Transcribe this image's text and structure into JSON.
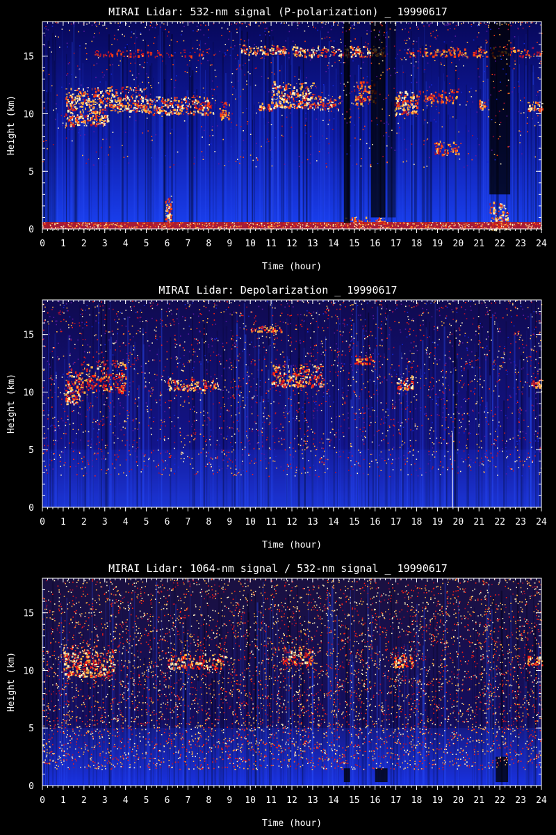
{
  "chart_data": [
    {
      "type": "heatmap",
      "title": "MIRAI Lidar: 532-nm signal (P-polarization) _ 19990617",
      "xlabel": "Time (hour)",
      "ylabel": "Height (km)",
      "xlim": [
        0,
        24
      ],
      "ylim": [
        0,
        18
      ],
      "x_ticks": [
        0,
        1,
        2,
        3,
        4,
        5,
        6,
        7,
        8,
        9,
        10,
        11,
        12,
        13,
        14,
        15,
        16,
        17,
        18,
        19,
        20,
        21,
        22,
        23,
        24
      ],
      "y_ticks": [
        0,
        5,
        10,
        15
      ],
      "colormap": [
        "#000000",
        "#0a0a8c",
        "#1428d8",
        "#5a1aa0",
        "#b01030",
        "#ff4010",
        "#ffb040",
        "#fff0c0"
      ],
      "style": "signal",
      "noise_level": 0.12,
      "features": [
        {
          "kind": "cirrus",
          "x": [
            1.1,
            3.2
          ],
          "y": [
            9.0,
            13.2
          ],
          "intensity": 0.95
        },
        {
          "kind": "cirrus",
          "x": [
            3.2,
            5.0
          ],
          "y": [
            10.2,
            13.0
          ],
          "intensity": 0.85
        },
        {
          "kind": "cirrus",
          "x": [
            5.0,
            8.2
          ],
          "y": [
            10.0,
            12.0
          ],
          "intensity": 0.9
        },
        {
          "kind": "cirrus",
          "x": [
            8.5,
            9.0
          ],
          "y": [
            9.5,
            11.5
          ],
          "intensity": 0.6
        },
        {
          "kind": "cirrus",
          "x": [
            10.3,
            11.0
          ],
          "y": [
            10.3,
            11.2
          ],
          "intensity": 0.7
        },
        {
          "kind": "cirrus",
          "x": [
            11.0,
            13.0
          ],
          "y": [
            10.5,
            13.5
          ],
          "intensity": 0.95
        },
        {
          "kind": "cirrus",
          "x": [
            13.0,
            14.3
          ],
          "y": [
            10.4,
            12.0
          ],
          "intensity": 0.7
        },
        {
          "kind": "cirrus",
          "x": [
            15.0,
            16.0
          ],
          "y": [
            10.8,
            13.5
          ],
          "intensity": 0.6
        },
        {
          "kind": "cirrus",
          "x": [
            16.9,
            18.0
          ],
          "y": [
            10.0,
            12.5
          ],
          "intensity": 0.95
        },
        {
          "kind": "cirrus",
          "x": [
            18.0,
            20.0
          ],
          "y": [
            11.0,
            12.5
          ],
          "intensity": 0.45
        },
        {
          "kind": "cirrus",
          "x": [
            21.0,
            21.3
          ],
          "y": [
            10.5,
            11.5
          ],
          "intensity": 0.7
        },
        {
          "kind": "cirrus",
          "x": [
            23.3,
            24.0
          ],
          "y": [
            10.3,
            11.3
          ],
          "intensity": 0.85
        },
        {
          "kind": "cirrus",
          "x": [
            9.5,
            11.8
          ],
          "y": [
            15.2,
            16.2
          ],
          "intensity": 0.9
        },
        {
          "kind": "cirrus",
          "x": [
            12.0,
            16.5
          ],
          "y": [
            15.0,
            16.2
          ],
          "intensity": 0.85
        },
        {
          "kind": "cirrus",
          "x": [
            17.5,
            24.0
          ],
          "y": [
            15.0,
            16.0
          ],
          "intensity": 0.55
        },
        {
          "kind": "cirrus",
          "x": [
            2.5,
            8.0
          ],
          "y": [
            15.0,
            15.8
          ],
          "intensity": 0.3
        },
        {
          "kind": "cirrus",
          "x": [
            18.8,
            20.0
          ],
          "y": [
            6.5,
            8.0
          ],
          "intensity": 0.65
        },
        {
          "kind": "cirrus",
          "x": [
            5.9,
            6.2
          ],
          "y": [
            0.5,
            3.8
          ],
          "intensity": 0.9
        },
        {
          "kind": "cirrus",
          "x": [
            21.5,
            22.4
          ],
          "y": [
            0.0,
            3.0
          ],
          "intensity": 0.9
        },
        {
          "kind": "cirrus",
          "x": [
            14.5,
            16.5
          ],
          "y": [
            0.5,
            1.2
          ],
          "intensity": 0.7
        },
        {
          "kind": "boundary_layer",
          "x": [
            0,
            24
          ],
          "y": [
            0,
            0.6
          ],
          "intensity": 0.85
        },
        {
          "kind": "gap",
          "x": [
            14.5,
            14.8
          ],
          "y": [
            0.5,
            18
          ],
          "intensity": 0.9
        },
        {
          "kind": "gap",
          "x": [
            15.8,
            16.5
          ],
          "y": [
            1.0,
            18
          ],
          "intensity": 0.9
        },
        {
          "kind": "gap",
          "x": [
            21.5,
            22.5
          ],
          "y": [
            3.0,
            18
          ],
          "intensity": 0.9
        },
        {
          "kind": "gap",
          "x": [
            16.6,
            17.0
          ],
          "y": [
            1.0,
            18
          ],
          "intensity": 0.6
        }
      ]
    },
    {
      "type": "heatmap",
      "title": "MIRAI Lidar: Depolarization _ 19990617",
      "xlabel": "Time (hour)",
      "ylabel": "Height (km)",
      "xlim": [
        0,
        24
      ],
      "ylim": [
        0,
        18
      ],
      "x_ticks": [
        0,
        1,
        2,
        3,
        4,
        5,
        6,
        7,
        8,
        9,
        10,
        11,
        12,
        13,
        14,
        15,
        16,
        17,
        18,
        19,
        20,
        21,
        22,
        23,
        24
      ],
      "y_ticks": [
        0,
        5,
        10,
        15
      ],
      "colormap": [
        "#000000",
        "#0a0a8c",
        "#1428d8",
        "#5a1aa0",
        "#b01030",
        "#ff2010",
        "#ffb040",
        "#fff0c0"
      ],
      "style": "depol",
      "noise_level": 0.35,
      "features": [
        {
          "kind": "cirrus",
          "x": [
            1.1,
            1.8
          ],
          "y": [
            9.0,
            13.0
          ],
          "intensity": 0.85
        },
        {
          "kind": "cirrus",
          "x": [
            1.8,
            4.0
          ],
          "y": [
            10.0,
            13.5
          ],
          "intensity": 0.65
        },
        {
          "kind": "cirrus",
          "x": [
            6.0,
            8.5
          ],
          "y": [
            10.2,
            11.5
          ],
          "intensity": 0.85
        },
        {
          "kind": "cirrus",
          "x": [
            11.0,
            13.5
          ],
          "y": [
            10.5,
            13.0
          ],
          "intensity": 0.8
        },
        {
          "kind": "cirrus",
          "x": [
            17.0,
            17.8
          ],
          "y": [
            10.3,
            11.8
          ],
          "intensity": 0.85
        },
        {
          "kind": "cirrus",
          "x": [
            23.5,
            24.0
          ],
          "y": [
            10.5,
            11.3
          ],
          "intensity": 0.7
        },
        {
          "kind": "cirrus",
          "x": [
            10.0,
            11.5
          ],
          "y": [
            15.3,
            16.0
          ],
          "intensity": 0.6
        },
        {
          "kind": "cirrus",
          "x": [
            15.0,
            16.0
          ],
          "y": [
            12.5,
            13.5
          ],
          "intensity": 0.5
        },
        {
          "kind": "haze",
          "x": [
            0,
            24
          ],
          "y": [
            0,
            5.0
          ],
          "intensity": 0.55
        },
        {
          "kind": "gap",
          "x": [
            19.7,
            19.75
          ],
          "y": [
            0,
            6.5
          ],
          "intensity": 0.9
        }
      ]
    },
    {
      "type": "heatmap",
      "title": "MIRAI Lidar: 1064-nm signal / 532-nm signal _ 19990617",
      "xlabel": "Time (hour)",
      "ylabel": "Height (km)",
      "xlim": [
        0,
        24
      ],
      "ylim": [
        0,
        18
      ],
      "x_ticks": [
        0,
        1,
        2,
        3,
        4,
        5,
        6,
        7,
        8,
        9,
        10,
        11,
        12,
        13,
        14,
        15,
        16,
        17,
        18,
        19,
        20,
        21,
        22,
        23,
        24
      ],
      "y_ticks": [
        0,
        5,
        10,
        15
      ],
      "colormap": [
        "#000000",
        "#0a0a8c",
        "#1428d8",
        "#5a1aa0",
        "#b01030",
        "#ff2010",
        "#ffb040",
        "#fff0c0"
      ],
      "style": "ratio",
      "noise_level": 0.7,
      "features": [
        {
          "kind": "cirrus",
          "x": [
            1.0,
            3.5
          ],
          "y": [
            9.5,
            13.0
          ],
          "intensity": 0.8
        },
        {
          "kind": "cirrus",
          "x": [
            6.0,
            8.8
          ],
          "y": [
            10.2,
            11.8
          ],
          "intensity": 0.75
        },
        {
          "kind": "cirrus",
          "x": [
            11.5,
            13.0
          ],
          "y": [
            10.5,
            12.5
          ],
          "intensity": 0.7
        },
        {
          "kind": "cirrus",
          "x": [
            16.9,
            17.8
          ],
          "y": [
            10.3,
            11.8
          ],
          "intensity": 0.75
        },
        {
          "kind": "cirrus",
          "x": [
            23.3,
            24.0
          ],
          "y": [
            10.5,
            11.5
          ],
          "intensity": 0.7
        },
        {
          "kind": "haze",
          "x": [
            0,
            24
          ],
          "y": [
            0,
            5.0
          ],
          "intensity": 0.7
        },
        {
          "kind": "gap",
          "x": [
            14.5,
            14.8
          ],
          "y": [
            0.3,
            1.5
          ],
          "intensity": 0.9
        },
        {
          "kind": "gap",
          "x": [
            16.0,
            16.6
          ],
          "y": [
            0.3,
            1.5
          ],
          "intensity": 0.9
        },
        {
          "kind": "gap",
          "x": [
            21.8,
            22.4
          ],
          "y": [
            0.3,
            2.5
          ],
          "intensity": 0.9
        }
      ]
    }
  ]
}
